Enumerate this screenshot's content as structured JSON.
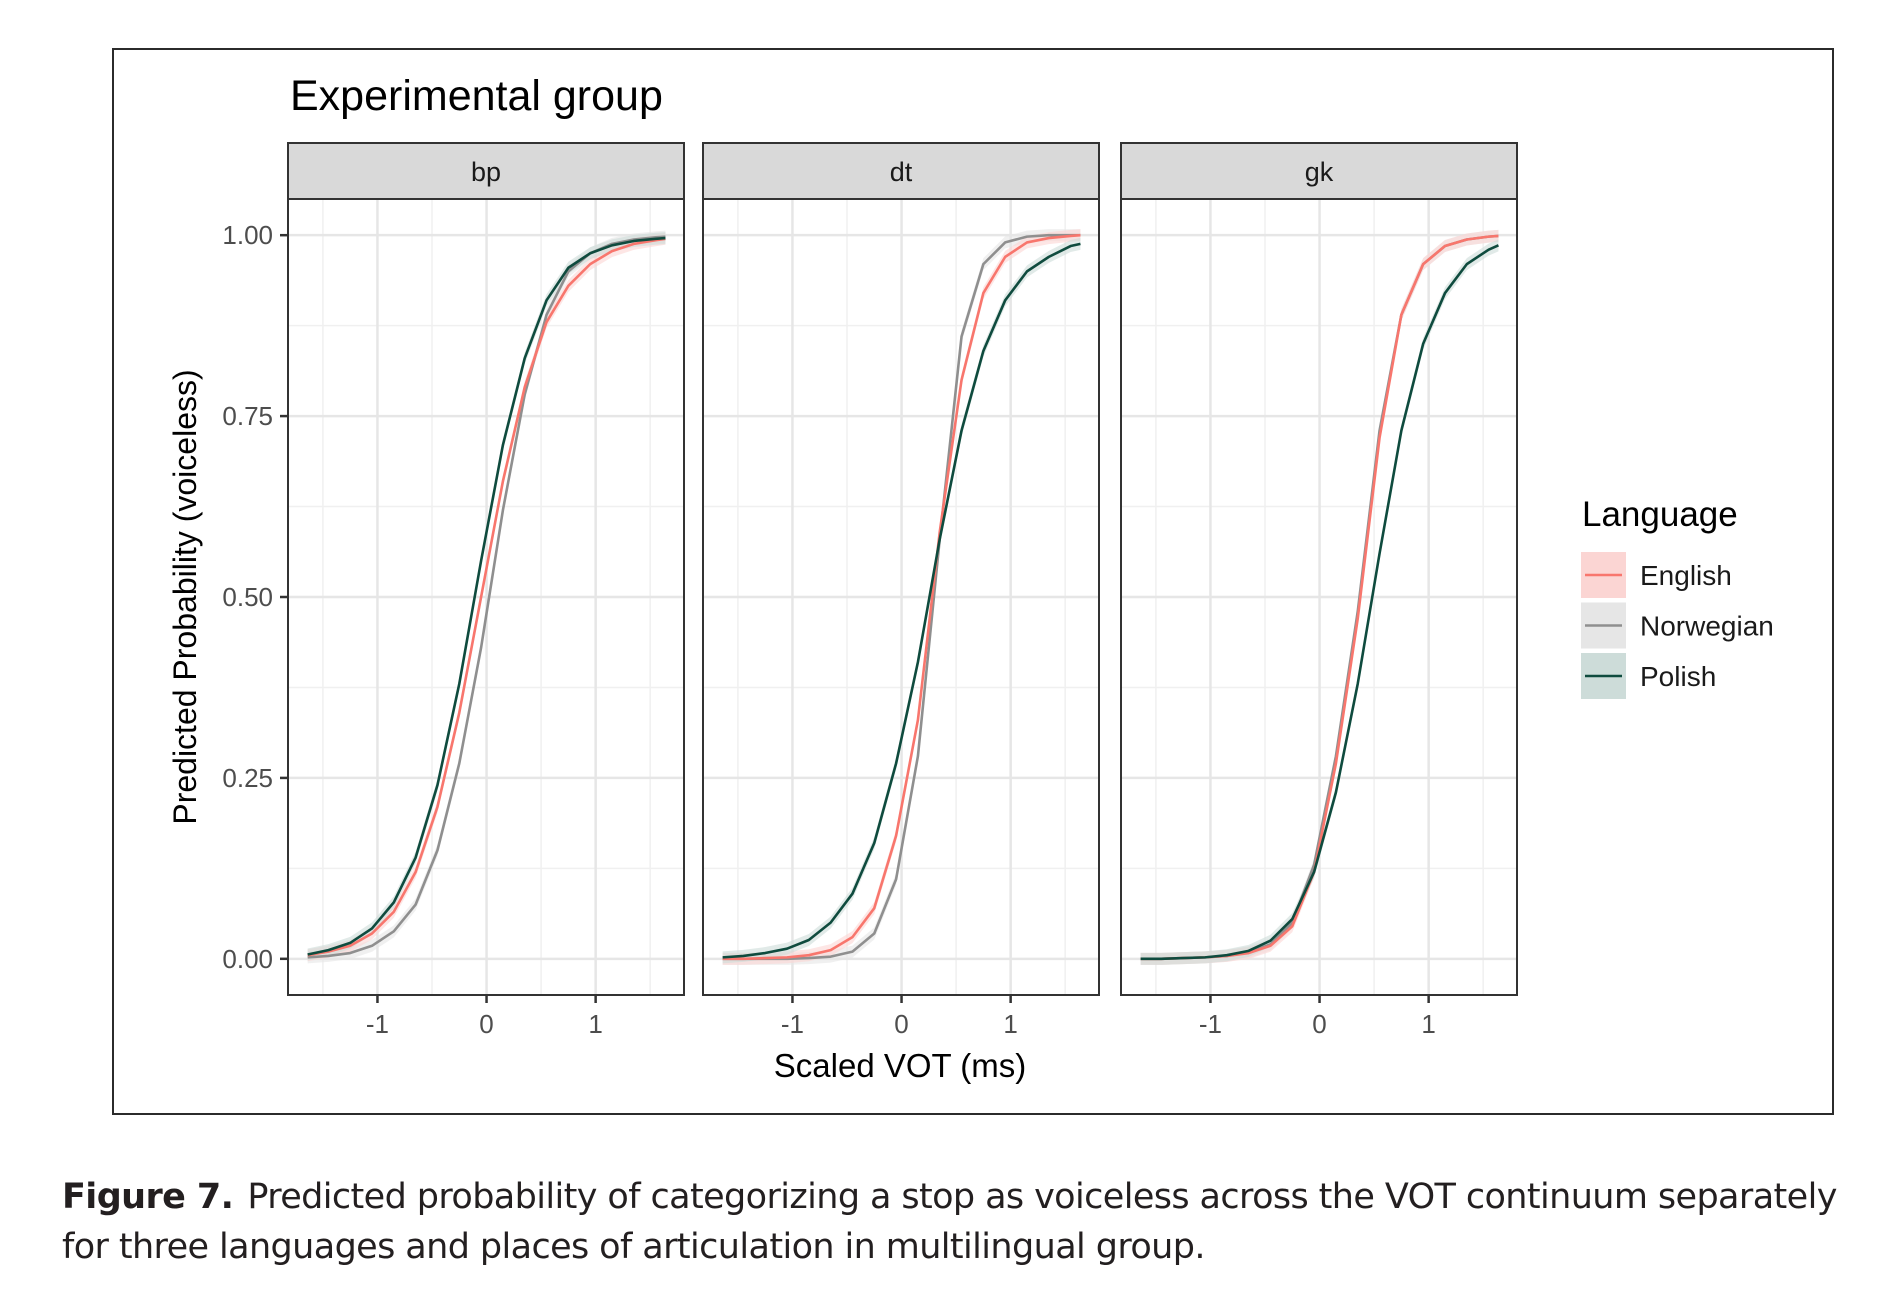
{
  "caption": {
    "label": "Figure 7.",
    "text": "Predicted probability of categorizing a stop as voiceless across the VOT continuum separately for three languages and places of articulation in multilingual group."
  },
  "chart_data": {
    "type": "line",
    "title": "Experimental group",
    "xlabel": "Scaled VOT (ms)",
    "ylabel": "Predicted Probability (voiceless)",
    "xlim": [
      -1.82,
      1.81
    ],
    "ylim": [
      -0.05,
      1.05
    ],
    "x_ticks": [
      -1,
      0,
      1
    ],
    "x_tick_labels": [
      "-1",
      "0",
      "1"
    ],
    "y_ticks": [
      0,
      0.25,
      0.5,
      0.75,
      1
    ],
    "y_tick_labels": [
      "0.00",
      "0.25",
      "0.50",
      "0.75",
      "1.00"
    ],
    "grid": true,
    "legend": {
      "title": "Language",
      "placement": "right",
      "entries": [
        "English",
        "Norwegian",
        "Polish"
      ]
    },
    "series_colors": {
      "English": "#f8766d",
      "Norwegian": "#8f8f8f",
      "Polish": "#0f4b3e"
    },
    "band_colors": {
      "English": "#fbd5d3",
      "Norwegian": "#e6e6e6",
      "Polish": "#cddcd9"
    },
    "x": [
      -1.64,
      -1.45,
      -1.25,
      -1.05,
      -0.85,
      -0.65,
      -0.45,
      -0.25,
      -0.05,
      0.15,
      0.35,
      0.55,
      0.75,
      0.95,
      1.15,
      1.35,
      1.55,
      1.64
    ],
    "panels": [
      {
        "facet": "bp",
        "series": [
          {
            "name": "English",
            "values": [
              0.005,
              0.01,
              0.018,
              0.035,
              0.065,
              0.12,
              0.21,
              0.34,
              0.5,
              0.66,
              0.79,
              0.88,
              0.93,
              0.96,
              0.978,
              0.988,
              0.993,
              0.995
            ]
          },
          {
            "name": "Norwegian",
            "values": [
              0.002,
              0.004,
              0.008,
              0.018,
              0.038,
              0.075,
              0.15,
              0.27,
              0.43,
              0.62,
              0.78,
              0.89,
              0.95,
              0.975,
              0.988,
              0.994,
              0.997,
              0.998
            ]
          },
          {
            "name": "Polish",
            "values": [
              0.006,
              0.012,
              0.022,
              0.042,
              0.078,
              0.14,
              0.24,
              0.38,
              0.55,
              0.71,
              0.83,
              0.91,
              0.955,
              0.975,
              0.986,
              0.992,
              0.995,
              0.996
            ]
          }
        ]
      },
      {
        "facet": "dt",
        "series": [
          {
            "name": "English",
            "values": [
              0.0,
              0.0,
              0.001,
              0.002,
              0.005,
              0.012,
              0.03,
              0.07,
              0.17,
              0.33,
              0.59,
              0.8,
              0.92,
              0.97,
              0.99,
              0.996,
              0.999,
              1.0
            ]
          },
          {
            "name": "Norwegian",
            "values": [
              0.0,
              0.0,
              0.0,
              0.0,
              0.001,
              0.003,
              0.01,
              0.035,
              0.11,
              0.28,
              0.58,
              0.86,
              0.96,
              0.99,
              0.998,
              1.0,
              1.0,
              1.0
            ]
          },
          {
            "name": "Polish",
            "values": [
              0.002,
              0.004,
              0.008,
              0.014,
              0.026,
              0.05,
              0.09,
              0.16,
              0.27,
              0.41,
              0.58,
              0.73,
              0.84,
              0.91,
              0.95,
              0.97,
              0.985,
              0.988
            ]
          }
        ]
      },
      {
        "facet": "gk",
        "series": [
          {
            "name": "English",
            "values": [
              0.0,
              0.0,
              0.001,
              0.002,
              0.004,
              0.008,
              0.018,
              0.045,
              0.12,
              0.27,
              0.47,
              0.72,
              0.89,
              0.96,
              0.985,
              0.994,
              0.998,
              0.999
            ]
          },
          {
            "name": "Norwegian",
            "values": [
              0.0,
              0.0,
              0.001,
              0.002,
              0.004,
              0.009,
              0.02,
              0.05,
              0.13,
              0.28,
              0.48,
              0.73,
              0.89,
              0.96,
              0.985,
              0.994,
              0.998,
              0.999
            ]
          },
          {
            "name": "Polish",
            "values": [
              0.0,
              0.0,
              0.001,
              0.002,
              0.005,
              0.011,
              0.025,
              0.055,
              0.12,
              0.23,
              0.38,
              0.56,
              0.73,
              0.85,
              0.92,
              0.96,
              0.98,
              0.986
            ]
          }
        ]
      }
    ]
  }
}
